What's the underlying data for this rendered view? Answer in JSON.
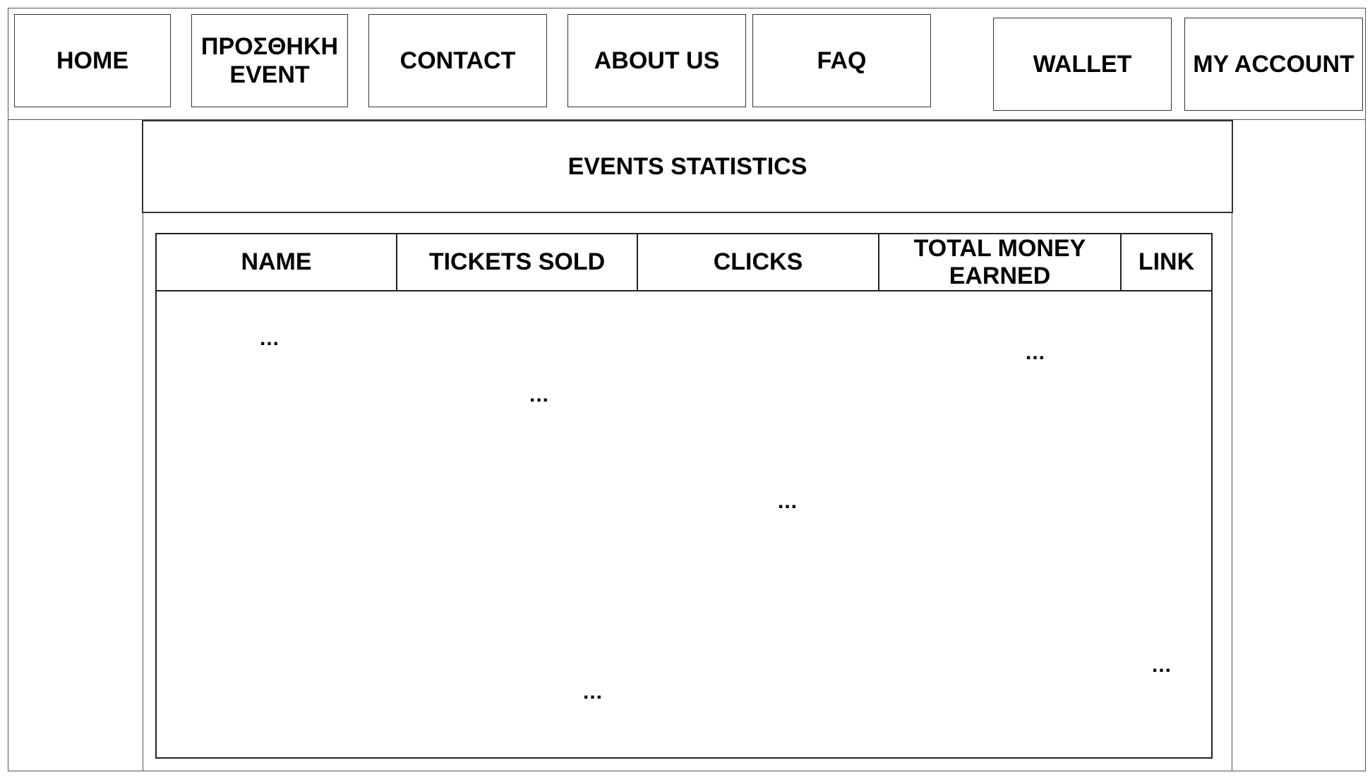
{
  "nav": {
    "home": "HOME",
    "add_event": "ΠΡΟΣΘΗΚΗ\nEVENT",
    "contact": "CONTACT",
    "about": "ABOUT US",
    "faq": "FAQ",
    "wallet": "WALLET",
    "account": "MY ACCOUNT"
  },
  "page_title": "EVENTS STATISTICS",
  "table": {
    "columns": [
      "NAME",
      "TICKETS SOLD",
      "CLICKS",
      "TOTAL MONEY\nEARNED",
      "LINK"
    ],
    "placeholders": [
      "...",
      "...",
      "...",
      "...",
      "...",
      "..."
    ]
  }
}
